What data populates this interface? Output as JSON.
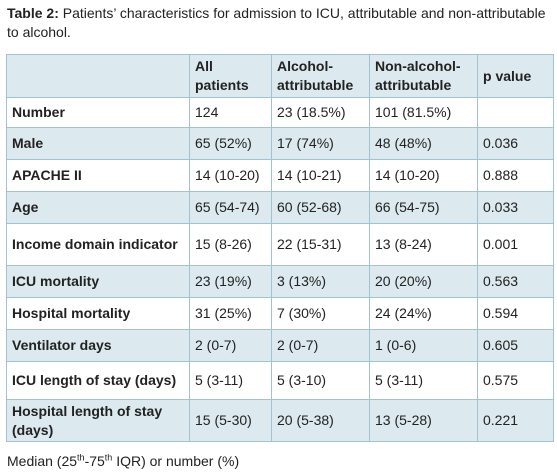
{
  "caption": {
    "label": "Table 2:",
    "text": " Patients’ characteristics for admission to ICU, attributable and non-attributable to alcohol."
  },
  "table": {
    "headers": [
      "",
      "All patients",
      "Alcohol-attributable",
      "Non-alcohol-attributable",
      "p value"
    ],
    "rows": [
      [
        "Number",
        "124",
        "23 (18.5%)",
        "101 (81.5%)",
        ""
      ],
      [
        "Male",
        "65 (52%)",
        "17 (74%)",
        "48 (48%)",
        "0.036"
      ],
      [
        "APACHE II",
        "14 (10-20)",
        "14 (10-21)",
        "14 (10-20)",
        "0.888"
      ],
      [
        "Age",
        "65 (54-74)",
        "60 (52-68)",
        "66 (54-75)",
        "0.033"
      ],
      [
        "Income domain indicator",
        "15 (8-26)",
        "22 (15-31)",
        "13 (8-24)",
        "0.001"
      ],
      [
        "ICU mortality",
        "23 (19%)",
        "3 (13%)",
        "20 (20%)",
        "0.563"
      ],
      [
        "Hospital mortality",
        "31 (25%)",
        "7 (30%)",
        "24 (24%)",
        "0.594"
      ],
      [
        "Ventilator days",
        "2 (0-7)",
        "2 (0-7)",
        "1 (0-6)",
        "0.605"
      ],
      [
        "ICU length of stay (days)",
        "5 (3-11)",
        "5 (3-10)",
        "5 (3-11)",
        "0.575"
      ],
      [
        "Hospital length of stay (days)",
        "15 (5-30)",
        "20 (5-38)",
        "13 (5-28)",
        "0.221"
      ]
    ]
  },
  "footnote": {
    "pre": "Median (25",
    "sup1": "th",
    "mid": "-75",
    "sup2": "th",
    "post": " IQR) or number (%)"
  },
  "colors": {
    "shaded_row": "#dce9ee",
    "border": "#9fc3d0",
    "text": "#222222"
  }
}
